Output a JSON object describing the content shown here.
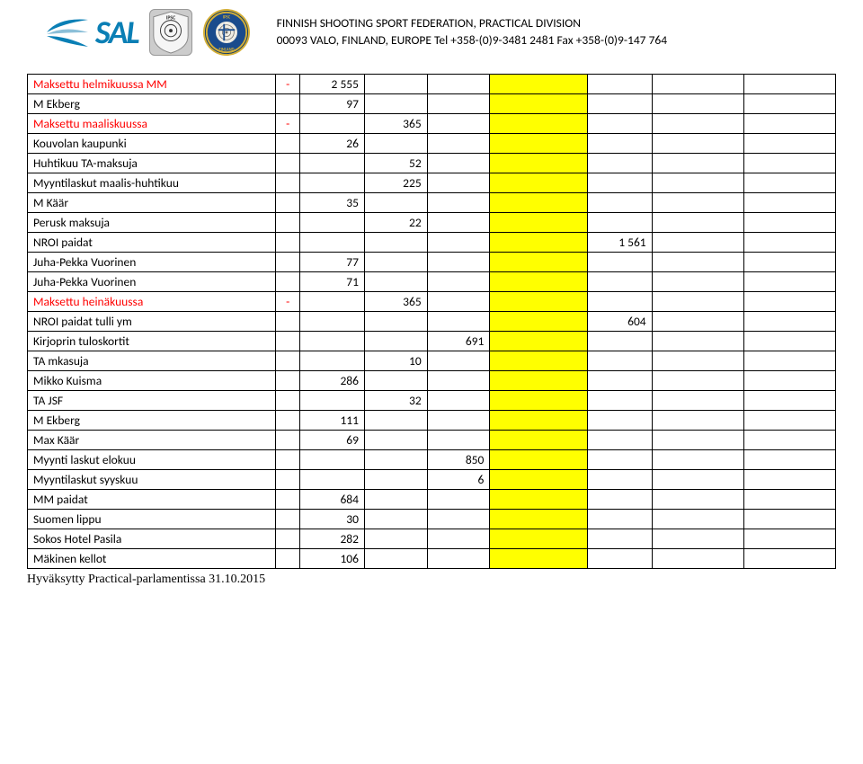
{
  "header": {
    "sal_text": "SAL",
    "line1": "FINNISH SHOOTING SPORT FEDERATION, PRACTICAL DIVISION",
    "line2": "00093 VALO, FINLAND, EUROPE Tel +358-(0)9-3481 2481   Fax +358-(0)9-147 764"
  },
  "colors": {
    "yellow": "#ffff00",
    "red": "#ff0000",
    "sal_blue": "#0a7fb5",
    "border": "#000000",
    "background": "#ffffff"
  },
  "rows": [
    {
      "label": "Maksettu helmikuussa MM",
      "red": true,
      "sign": "-",
      "v1": "2 555",
      "v2": "",
      "v3": "",
      "v4": ""
    },
    {
      "label": "M Ekberg",
      "red": false,
      "sign": "",
      "v1": "97",
      "v2": "",
      "v3": "",
      "v4": ""
    },
    {
      "label": "Maksettu maaliskuussa",
      "red": true,
      "sign": "-",
      "v1": "",
      "v2": "365",
      "v3": "",
      "v4": ""
    },
    {
      "label": "Kouvolan kaupunki",
      "red": false,
      "sign": "",
      "v1": "26",
      "v2": "",
      "v3": "",
      "v4": ""
    },
    {
      "label": "Huhtikuu TA-maksuja",
      "red": false,
      "sign": "",
      "v1": "",
      "v2": "52",
      "v3": "",
      "v4": ""
    },
    {
      "label": "Myyntilaskut maalis-huhtikuu",
      "red": false,
      "sign": "",
      "v1": "",
      "v2": "225",
      "v3": "",
      "v4": ""
    },
    {
      "label": "M Käär",
      "red": false,
      "sign": "",
      "v1": "35",
      "v2": "",
      "v3": "",
      "v4": ""
    },
    {
      "label": "Perusk maksuja",
      "red": false,
      "sign": "",
      "v1": "",
      "v2": "22",
      "v3": "",
      "v4": ""
    },
    {
      "label": "NROI paidat",
      "red": false,
      "sign": "",
      "v1": "",
      "v2": "",
      "v3": "",
      "v4": "1 561"
    },
    {
      "label": "Juha-Pekka Vuorinen",
      "red": false,
      "sign": "",
      "v1": "77",
      "v2": "",
      "v3": "",
      "v4": ""
    },
    {
      "label": "Juha-Pekka Vuorinen",
      "red": false,
      "sign": "",
      "v1": "71",
      "v2": "",
      "v3": "",
      "v4": ""
    },
    {
      "label": "Maksettu heinäkuussa",
      "red": true,
      "sign": "-",
      "v1": "",
      "v2": "365",
      "v3": "",
      "v4": ""
    },
    {
      "label": "NROI paidat tulli ym",
      "red": false,
      "sign": "",
      "v1": "",
      "v2": "",
      "v3": "",
      "v4": "604"
    },
    {
      "label": "Kirjoprin tuloskortit",
      "red": false,
      "sign": "",
      "v1": "",
      "v2": "",
      "v3": "691",
      "v4": ""
    },
    {
      "label": "TA mkasuja",
      "red": false,
      "sign": "",
      "v1": "",
      "v2": "10",
      "v3": "",
      "v4": ""
    },
    {
      "label": "Mikko Kuisma",
      "red": false,
      "sign": "",
      "v1": "286",
      "v2": "",
      "v3": "",
      "v4": ""
    },
    {
      "label": "TA JSF",
      "red": false,
      "sign": "",
      "v1": "",
      "v2": "32",
      "v3": "",
      "v4": ""
    },
    {
      "label": "M Ekberg",
      "red": false,
      "sign": "",
      "v1": "111",
      "v2": "",
      "v3": "",
      "v4": ""
    },
    {
      "label": "Max Käär",
      "red": false,
      "sign": "",
      "v1": "69",
      "v2": "",
      "v3": "",
      "v4": ""
    },
    {
      "label": "Myynti laskut elokuu",
      "red": false,
      "sign": "",
      "v1": "",
      "v2": "",
      "v3": "850",
      "v4": ""
    },
    {
      "label": "Myyntilaskut syyskuu",
      "red": false,
      "sign": "",
      "v1": "",
      "v2": "",
      "v3": "6",
      "v4": ""
    },
    {
      "label": "MM paidat",
      "red": false,
      "sign": "",
      "v1": "684",
      "v2": "",
      "v3": "",
      "v4": ""
    },
    {
      "label": "Suomen lippu",
      "red": false,
      "sign": "",
      "v1": "30",
      "v2": "",
      "v3": "",
      "v4": ""
    },
    {
      "label": "Sokos Hotel Pasila",
      "red": false,
      "sign": "",
      "v1": "282",
      "v2": "",
      "v3": "",
      "v4": ""
    },
    {
      "label": "Mäkinen kellot",
      "red": false,
      "sign": "",
      "v1": "106",
      "v2": "",
      "v3": "",
      "v4": ""
    }
  ],
  "footer": "Hyväksytty Practical-parlamentissa 31.10.2015"
}
